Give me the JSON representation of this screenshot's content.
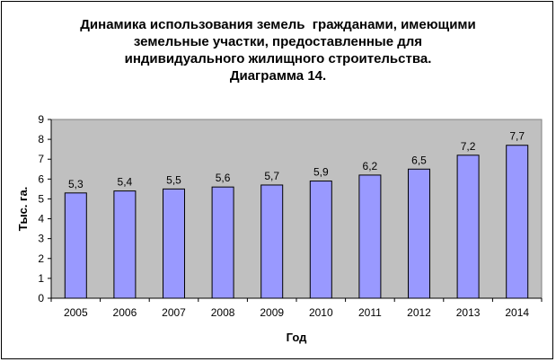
{
  "chart_data": {
    "type": "bar",
    "title_lines": [
      "Динамика использования земель  гражданами, имеющими",
      "земельные участки, предоставленные для",
      "индивидуального жилищного строительства.",
      "Диаграмма 14."
    ],
    "xlabel": "Год",
    "ylabel": "Тыс. га.",
    "categories": [
      "2005",
      "2006",
      "2007",
      "2008",
      "2009",
      "2010",
      "2011",
      "2012",
      "2013",
      "2014"
    ],
    "values": [
      5.3,
      5.4,
      5.5,
      5.6,
      5.7,
      5.9,
      6.2,
      6.5,
      7.2,
      7.7
    ],
    "value_labels": [
      "5,3",
      "5,4",
      "5,5",
      "5,6",
      "5,7",
      "5,9",
      "6,2",
      "6,5",
      "7,2",
      "7,7"
    ],
    "ylim": [
      0,
      9
    ],
    "yticks": [
      "0",
      "1",
      "2",
      "3",
      "4",
      "5",
      "6",
      "7",
      "8",
      "9"
    ],
    "grid": false,
    "legend": "none",
    "colors": {
      "bar_fill": "#9999ff",
      "bar_stroke": "#000000",
      "plot_background": "#c0c0c0"
    }
  }
}
